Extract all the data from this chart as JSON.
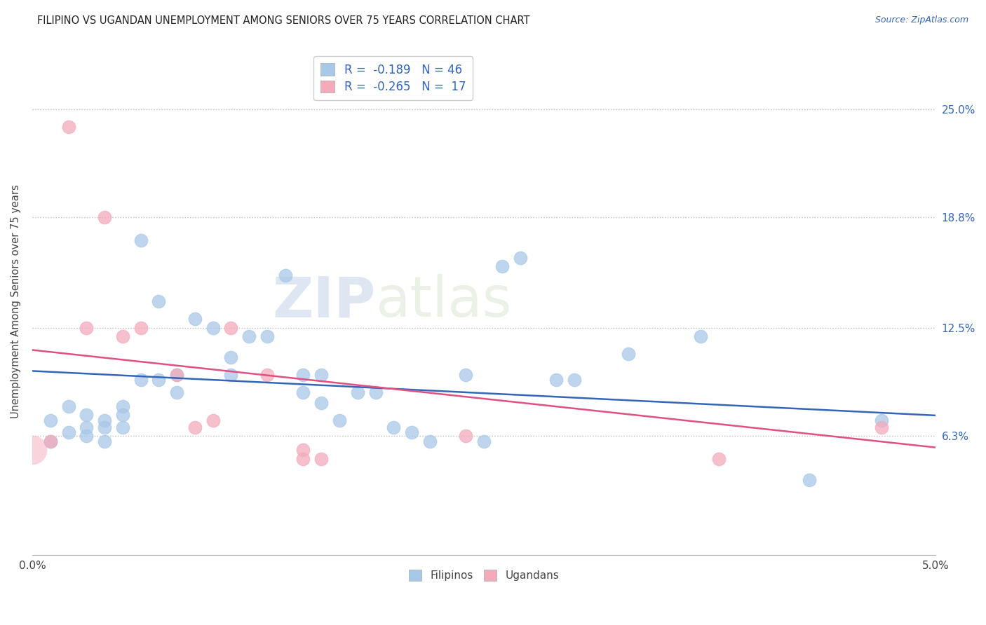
{
  "title": "FILIPINO VS UGANDAN UNEMPLOYMENT AMONG SENIORS OVER 75 YEARS CORRELATION CHART",
  "source": "Source: ZipAtlas.com",
  "ylabel": "Unemployment Among Seniors over 75 years",
  "ytick_labels": [
    "6.3%",
    "12.5%",
    "18.8%",
    "25.0%"
  ],
  "ytick_values": [
    0.063,
    0.125,
    0.188,
    0.25
  ],
  "xlim": [
    0.0,
    0.05
  ],
  "ylim": [
    -0.005,
    0.285
  ],
  "filipino_color": "#A8C8E8",
  "ugandan_color": "#F4AABB",
  "filipino_line_color": "#3366BB",
  "ugandan_line_color": "#E05080",
  "filipino_R": -0.189,
  "filipino_N": 46,
  "ugandan_R": -0.265,
  "ugandan_N": 17,
  "watermark_zip": "ZIP",
  "watermark_atlas": "atlas",
  "filipino_points_x": [
    0.001,
    0.001,
    0.002,
    0.002,
    0.003,
    0.003,
    0.003,
    0.004,
    0.004,
    0.004,
    0.005,
    0.005,
    0.005,
    0.006,
    0.006,
    0.007,
    0.007,
    0.008,
    0.008,
    0.009,
    0.01,
    0.011,
    0.011,
    0.012,
    0.013,
    0.014,
    0.015,
    0.015,
    0.016,
    0.016,
    0.017,
    0.018,
    0.019,
    0.02,
    0.021,
    0.022,
    0.024,
    0.025,
    0.026,
    0.027,
    0.029,
    0.03,
    0.033,
    0.037,
    0.043,
    0.047
  ],
  "filipino_points_y": [
    0.072,
    0.06,
    0.08,
    0.065,
    0.075,
    0.068,
    0.063,
    0.072,
    0.068,
    0.06,
    0.08,
    0.075,
    0.068,
    0.095,
    0.175,
    0.14,
    0.095,
    0.098,
    0.088,
    0.13,
    0.125,
    0.108,
    0.098,
    0.12,
    0.12,
    0.155,
    0.098,
    0.088,
    0.098,
    0.082,
    0.072,
    0.088,
    0.088,
    0.068,
    0.065,
    0.06,
    0.098,
    0.06,
    0.16,
    0.165,
    0.095,
    0.095,
    0.11,
    0.12,
    0.038,
    0.072
  ],
  "ugandan_points_x": [
    0.001,
    0.002,
    0.003,
    0.004,
    0.005,
    0.006,
    0.008,
    0.009,
    0.01,
    0.011,
    0.013,
    0.015,
    0.015,
    0.016,
    0.024,
    0.038,
    0.047
  ],
  "ugandan_points_y": [
    0.06,
    0.24,
    0.125,
    0.188,
    0.12,
    0.125,
    0.098,
    0.068,
    0.072,
    0.125,
    0.098,
    0.055,
    0.05,
    0.05,
    0.063,
    0.05,
    0.068
  ]
}
